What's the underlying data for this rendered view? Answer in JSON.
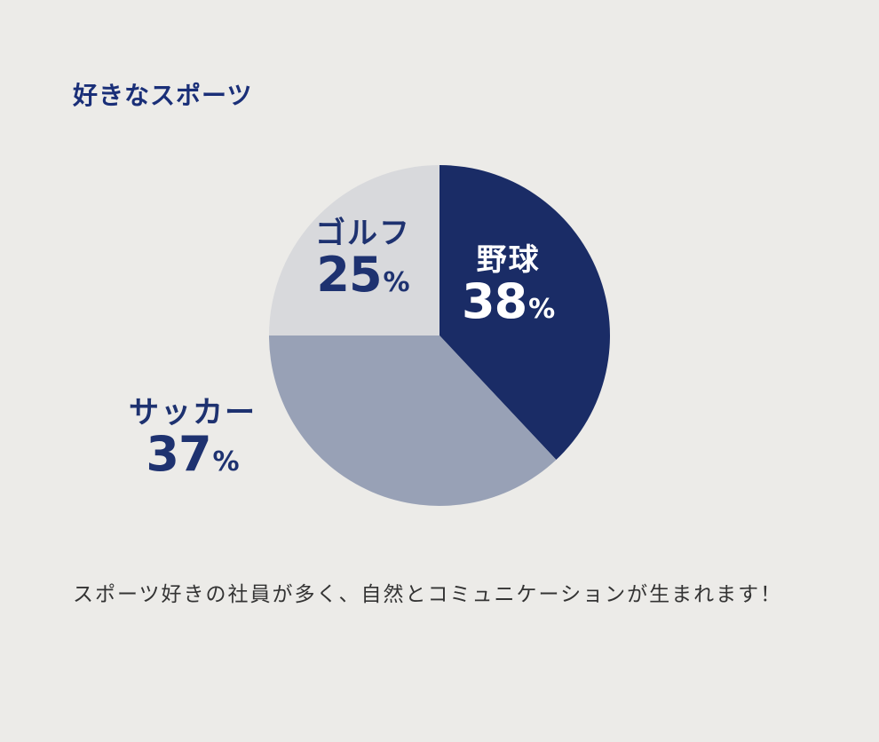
{
  "heading": "好きなスポーツ",
  "description": "スポーツ好きの社員が多く、自然とコミュニケーションが生まれます！",
  "percent_unit": "%",
  "chart_data": {
    "type": "pie",
    "title": "好きなスポーツ",
    "slices": [
      {
        "label": "野球",
        "value": 38,
        "color": "#1a2c66",
        "text_color": "#ffffff"
      },
      {
        "label": "サッカー",
        "value": 37,
        "color": "#98a1b6",
        "text_color": "#1e3270"
      },
      {
        "label": "ゴルフ",
        "value": 25,
        "color": "#d8d9dc",
        "text_color": "#1e3270"
      }
    ],
    "start": "12 o'clock",
    "direction": "clockwise"
  }
}
